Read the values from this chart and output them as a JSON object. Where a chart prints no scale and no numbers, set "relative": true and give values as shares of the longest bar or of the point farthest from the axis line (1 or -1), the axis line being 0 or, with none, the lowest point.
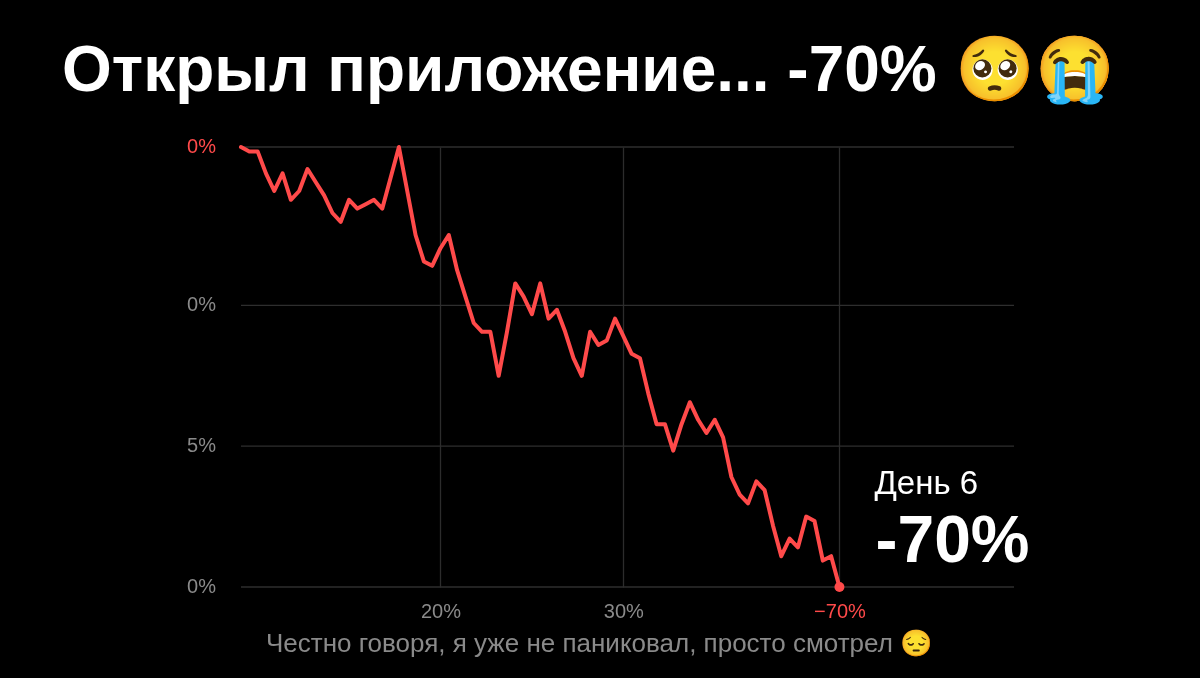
{
  "chart_data": {
    "type": "line",
    "title": "Открыл приложение... -70% 🥺😭",
    "relative": true,
    "categories": [
      null,
      null,
      null,
      null,
      null,
      null,
      null,
      null,
      null,
      null,
      null,
      null,
      null,
      null,
      null,
      null,
      null,
      null,
      null,
      null,
      null,
      null,
      null,
      null,
      "20%",
      null,
      null,
      null,
      null,
      null,
      null,
      null,
      null,
      null,
      null,
      null,
      null,
      null,
      null,
      null,
      null,
      null,
      null,
      null,
      null,
      null,
      "30%",
      null,
      null,
      null,
      null,
      null,
      null,
      null,
      null,
      null,
      null,
      null,
      null,
      null,
      null,
      null,
      null,
      null,
      null,
      null,
      null,
      null,
      null,
      null,
      null,
      null,
      "−70%",
      null,
      null,
      null,
      null,
      null,
      null,
      null,
      null,
      null,
      null,
      null,
      null,
      null,
      null,
      null,
      null,
      null,
      null,
      null,
      null,
      null
    ],
    "grid": "x",
    "ref_lines": [
      {
        "axis": "y",
        "value": 1,
        "color": "#2e2e2e"
      },
      {
        "axis": "y",
        "value": 0.64,
        "color": "#2e2e2e"
      },
      {
        "axis": "y",
        "value": 0.32,
        "color": "#2e2e2e"
      },
      {
        "axis": "y",
        "value": 0,
        "color": "#2e2e2e"
      }
    ],
    "series": [
      {
        "color": "#ff4a4a",
        "line_style": "solid",
        "values": [
          1,
          0.99,
          0.99,
          0.94,
          0.9,
          0.94,
          0.88,
          0.9,
          0.95,
          0.92,
          0.89,
          0.85,
          0.83,
          0.88,
          0.86,
          0.87,
          0.88,
          0.86,
          0.93,
          1,
          0.9,
          0.8,
          0.74,
          0.73,
          0.77,
          0.8,
          0.72,
          0.66,
          0.6,
          0.58,
          0.58,
          0.48,
          0.58,
          0.69,
          0.66,
          0.62,
          0.69,
          0.61,
          0.63,
          0.58,
          0.52,
          0.48,
          0.58,
          0.55,
          0.56,
          0.61,
          0.57,
          0.53,
          0.52,
          0.44,
          0.37,
          0.37,
          0.31,
          0.37,
          0.42,
          0.38,
          0.35,
          0.38,
          0.34,
          0.25,
          0.21,
          0.19,
          0.24,
          0.22,
          0.14,
          0.07,
          0.11,
          0.09,
          0.16,
          0.15,
          0.06,
          0.07,
          0,
          null,
          null,
          null,
          null,
          null,
          null,
          null,
          null,
          null,
          null,
          null,
          null,
          null,
          null,
          null,
          null,
          null,
          null,
          null,
          null,
          null
        ]
      },
      {
        "type": "scatter",
        "color": "#ff4a4a",
        "marker": "circle",
        "values": [
          null,
          null,
          null,
          null,
          null,
          null,
          null,
          null,
          null,
          null,
          null,
          null,
          null,
          null,
          null,
          null,
          null,
          null,
          null,
          null,
          null,
          null,
          null,
          null,
          null,
          null,
          null,
          null,
          null,
          null,
          null,
          null,
          null,
          null,
          null,
          null,
          null,
          null,
          null,
          null,
          null,
          null,
          null,
          null,
          null,
          null,
          null,
          null,
          null,
          null,
          null,
          null,
          null,
          null,
          null,
          null,
          null,
          null,
          null,
          null,
          null,
          null,
          null,
          null,
          null,
          null,
          null,
          null,
          null,
          null,
          null,
          null,
          0,
          null,
          null,
          null,
          null,
          null,
          null,
          null,
          null,
          null,
          null,
          null,
          null,
          null,
          null,
          null,
          null,
          null,
          null,
          null,
          null,
          null
        ]
      }
    ],
    "annotations": [
      "0%",
      "0%",
      "5%",
      "0%",
      "День 6",
      "-70%",
      "Честно говоря, я уже не паниковал, просто смотрел 😔"
    ]
  }
}
